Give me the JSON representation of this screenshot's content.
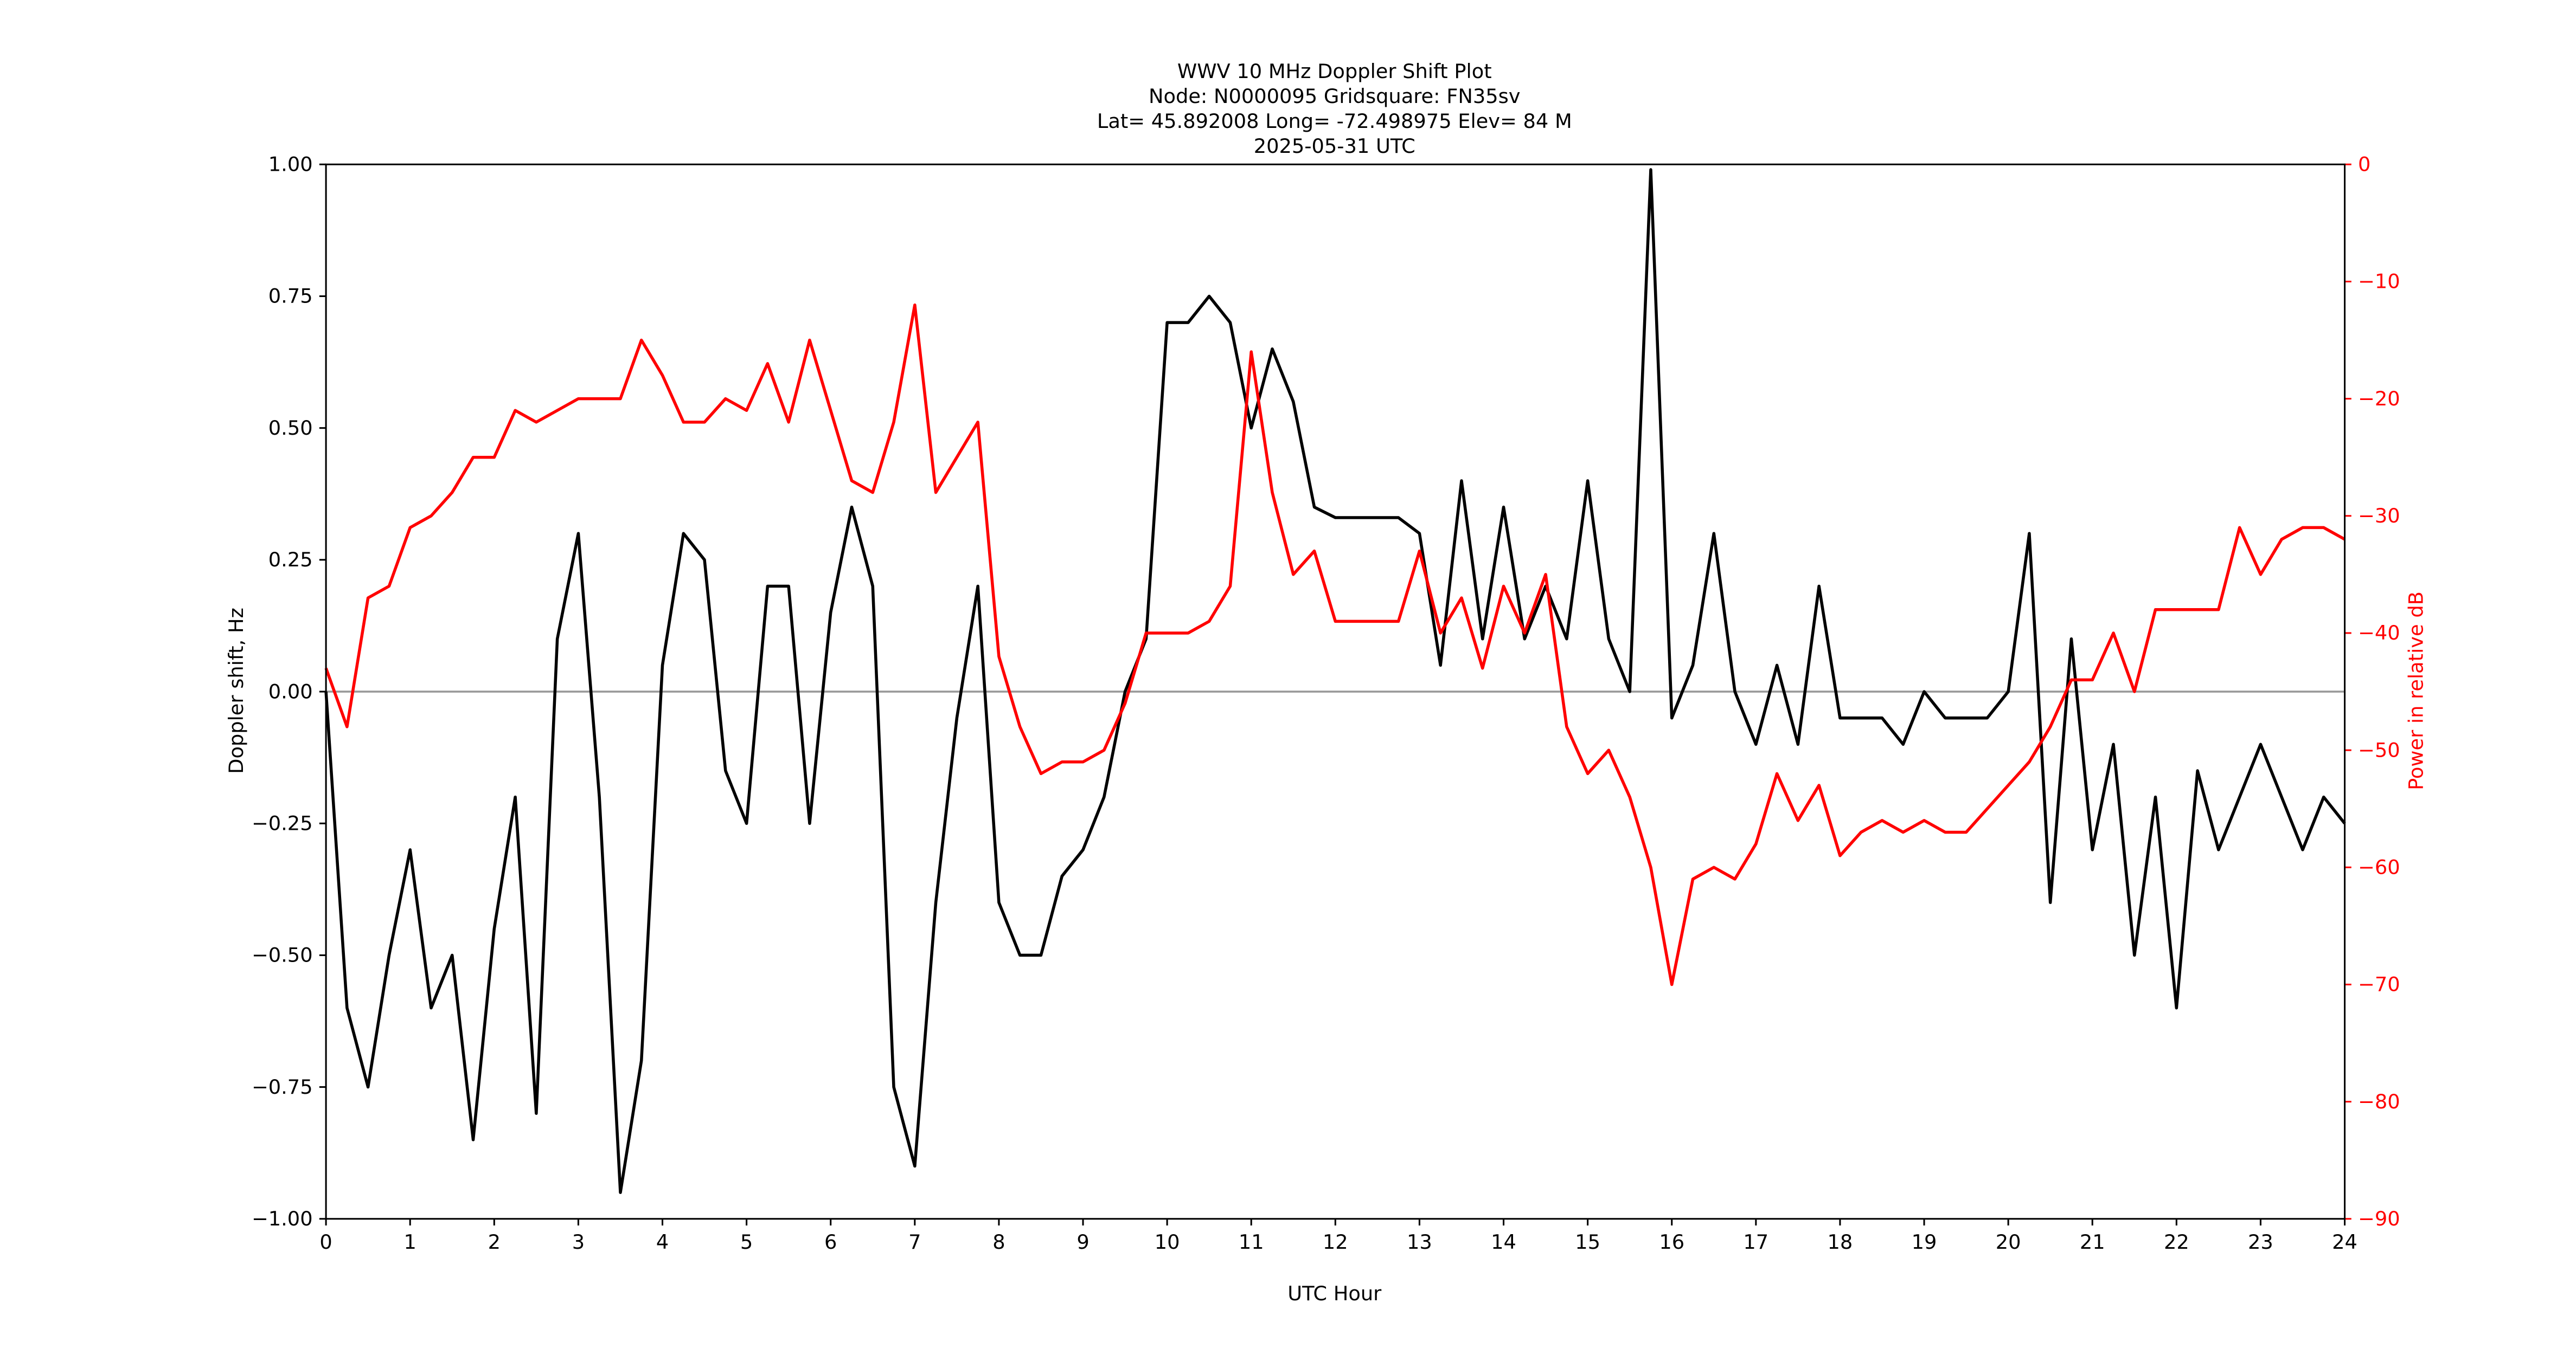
{
  "chart_data": {
    "type": "line",
    "title_lines": [
      "WWV 10 MHz Doppler Shift Plot",
      "Node:  N0000095     Gridsquare:  FN35sv",
      "Lat= 45.892008    Long= -72.498975    Elev= 84 M",
      "2025-05-31  UTC"
    ],
    "xlabel": "UTC Hour",
    "ylabel": "Doppler shift, Hz",
    "y2label": "Power in relative dB",
    "x": [
      0,
      0.25,
      0.5,
      0.75,
      1,
      1.25,
      1.5,
      1.75,
      2,
      2.25,
      2.5,
      2.75,
      3,
      3.25,
      3.5,
      3.75,
      4,
      4.25,
      4.5,
      4.75,
      5,
      5.25,
      5.5,
      5.75,
      6,
      6.25,
      6.5,
      6.75,
      7,
      7.25,
      7.5,
      7.75,
      8,
      8.25,
      8.5,
      8.75,
      9,
      9.25,
      9.5,
      9.75,
      10,
      10.25,
      10.5,
      10.75,
      11,
      11.25,
      11.5,
      11.75,
      12,
      12.25,
      12.5,
      12.75,
      13,
      13.25,
      13.5,
      13.75,
      14,
      14.25,
      14.5,
      14.75,
      15,
      15.25,
      15.5,
      15.75,
      16,
      16.25,
      16.5,
      16.75,
      17,
      17.25,
      17.5,
      17.75,
      18,
      18.25,
      18.5,
      18.75,
      19,
      19.25,
      19.5,
      19.75,
      20,
      20.25,
      20.5,
      20.75,
      21,
      21.25,
      21.5,
      21.75,
      22,
      22.25,
      22.5,
      22.75,
      23,
      23.25,
      23.5,
      23.75,
      24
    ],
    "series": [
      {
        "name": "Doppler shift",
        "color": "#000000",
        "axis": "y",
        "values": [
          0,
          -0.6,
          -0.75,
          -0.5,
          -0.3,
          -0.6,
          -0.5,
          -0.85,
          -0.45,
          -0.2,
          -0.8,
          0.1,
          0.3,
          -0.2,
          -0.95,
          -0.7,
          0.05,
          0.3,
          0.25,
          -0.15,
          -0.25,
          0.2,
          0.2,
          -0.25,
          0.15,
          0.35,
          0.2,
          -0.75,
          -0.9,
          -0.4,
          -0.05,
          0.2,
          -0.4,
          -0.5,
          -0.5,
          -0.35,
          -0.3,
          -0.2,
          0,
          0.1,
          0.7,
          0.7,
          0.75,
          0.7,
          0.5,
          0.65,
          0.55,
          0.35,
          0.33,
          0.33,
          0.33,
          0.33,
          0.3,
          0.05,
          0.4,
          0.1,
          0.35,
          0.1,
          0.2,
          0.1,
          0.4,
          0.1,
          0,
          0.99,
          -0.05,
          0.05,
          0.3,
          0,
          -0.1,
          0.05,
          -0.1,
          0.2,
          -0.05,
          -0.05,
          -0.05,
          -0.1,
          0,
          -0.05,
          -0.05,
          -0.05,
          0,
          0.3,
          -0.4,
          0.1,
          -0.3,
          -0.1,
          -0.5,
          -0.2,
          -0.6,
          -0.15,
          -0.3,
          -0.2,
          -0.1,
          -0.2,
          -0.3,
          -0.2,
          -0.25
        ]
      },
      {
        "name": "Power",
        "color": "#ff0000",
        "axis": "y2",
        "values": [
          -43,
          -48,
          -37,
          -36,
          -31,
          -30,
          -28,
          -25,
          -25,
          -21,
          -22,
          -21,
          -20,
          -20,
          -20,
          -15,
          -18,
          -22,
          -22,
          -20,
          -21,
          -17,
          -22,
          -15,
          -21,
          -27,
          -28,
          -22,
          -12,
          -28,
          -25,
          -22,
          -42,
          -48,
          -52,
          -51,
          -51,
          -50,
          -46,
          -40,
          -40,
          -40,
          -39,
          -36,
          -16,
          -28,
          -35,
          -33,
          -39,
          -39,
          -39,
          -39,
          -33,
          -40,
          -37,
          -43,
          -36,
          -40,
          -35,
          -48,
          -52,
          -50,
          -54,
          -60,
          -70,
          -61,
          -60,
          -61,
          -58,
          -52,
          -56,
          -53,
          -59,
          -57,
          -56,
          -57,
          -56,
          -57,
          -57,
          -55,
          -53,
          -51,
          -48,
          -44,
          -44,
          -40,
          -45,
          -38,
          -38,
          -38,
          -38,
          -31,
          -35,
          -32,
          -31,
          -31,
          -32
        ]
      }
    ],
    "xlim": [
      0,
      24
    ],
    "xticks": [
      0,
      1,
      2,
      3,
      4,
      5,
      6,
      7,
      8,
      9,
      10,
      11,
      12,
      13,
      14,
      15,
      16,
      17,
      18,
      19,
      20,
      21,
      22,
      23,
      24
    ],
    "ylim": [
      -1,
      1
    ],
    "yticks": [
      {
        "value": -1,
        "label": "−1.00"
      },
      {
        "value": -0.75,
        "label": "−0.75"
      },
      {
        "value": -0.5,
        "label": "−0.50"
      },
      {
        "value": -0.25,
        "label": "−0.25"
      },
      {
        "value": 0,
        "label": "0.00"
      },
      {
        "value": 0.25,
        "label": "0.25"
      },
      {
        "value": 0.5,
        "label": "0.50"
      },
      {
        "value": 0.75,
        "label": "0.75"
      },
      {
        "value": 1,
        "label": "1.00"
      }
    ],
    "y2lim": [
      -90,
      0
    ],
    "y2ticks": [
      {
        "value": -90,
        "label": "−90"
      },
      {
        "value": -80,
        "label": "−80"
      },
      {
        "value": -70,
        "label": "−70"
      },
      {
        "value": -60,
        "label": "−60"
      },
      {
        "value": -50,
        "label": "−50"
      },
      {
        "value": -40,
        "label": "−40"
      },
      {
        "value": -30,
        "label": "−30"
      },
      {
        "value": -20,
        "label": "−20"
      },
      {
        "value": -10,
        "label": "−10"
      },
      0
    ],
    "y2color": "#ff0000",
    "hlines": [
      0
    ],
    "hline_color": "#999999"
  }
}
